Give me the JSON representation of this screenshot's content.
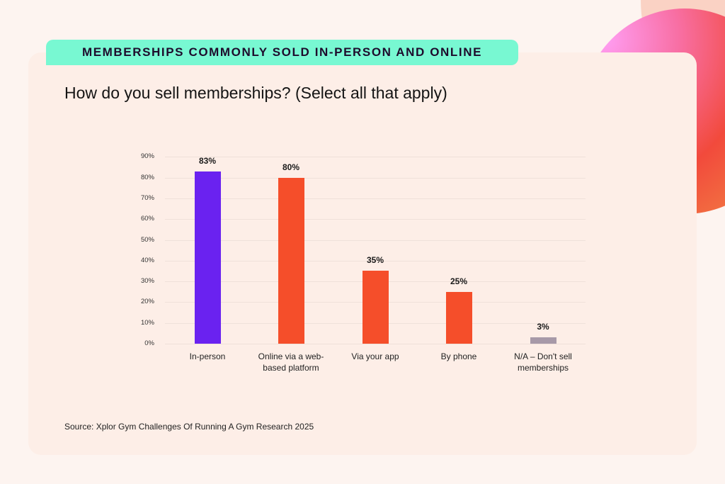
{
  "header": {
    "pill_title": "MEMBERSHIPS COMMONLY SOLD IN-PERSON AND ONLINE",
    "question": "How do you sell memberships? (Select all that apply)"
  },
  "colors": {
    "background": "#fdf4f0",
    "card": "#fdeee7",
    "pill": "#78f8d2",
    "bar_primary": "#6a22f0",
    "bar_secondary": "#f54e2a",
    "bar_na": "#a799a8"
  },
  "chart_data": {
    "type": "bar",
    "title": "How do you sell memberships? (Select all that apply)",
    "xlabel": "",
    "ylabel": "",
    "ylim": [
      0,
      90
    ],
    "yticks": [
      "0%",
      "10%",
      "20%",
      "30%",
      "40%",
      "50%",
      "60%",
      "70%",
      "80%",
      "90%"
    ],
    "grid": true,
    "categories": [
      "In-person",
      "Online via a web-based platform",
      "Via your app",
      "By phone",
      "N/A – Don't sell memberships"
    ],
    "values": [
      83,
      80,
      35,
      25,
      3
    ],
    "value_labels": [
      "83%",
      "80%",
      "35%",
      "25%",
      "3%"
    ],
    "bar_colors": [
      "#6a22f0",
      "#f54e2a",
      "#f54e2a",
      "#f54e2a",
      "#a799a8"
    ]
  },
  "x_labels": [
    {
      "line1": "In-person",
      "line2": ""
    },
    {
      "line1": "Online via a web-",
      "line2": "based platform"
    },
    {
      "line1": "Via your app",
      "line2": ""
    },
    {
      "line1": "By phone",
      "line2": ""
    },
    {
      "line1": "N/A – Don't sell",
      "line2": "memberships"
    }
  ],
  "footer": {
    "source": "Source: Xplor Gym Challenges Of Running A Gym Research 2025"
  }
}
